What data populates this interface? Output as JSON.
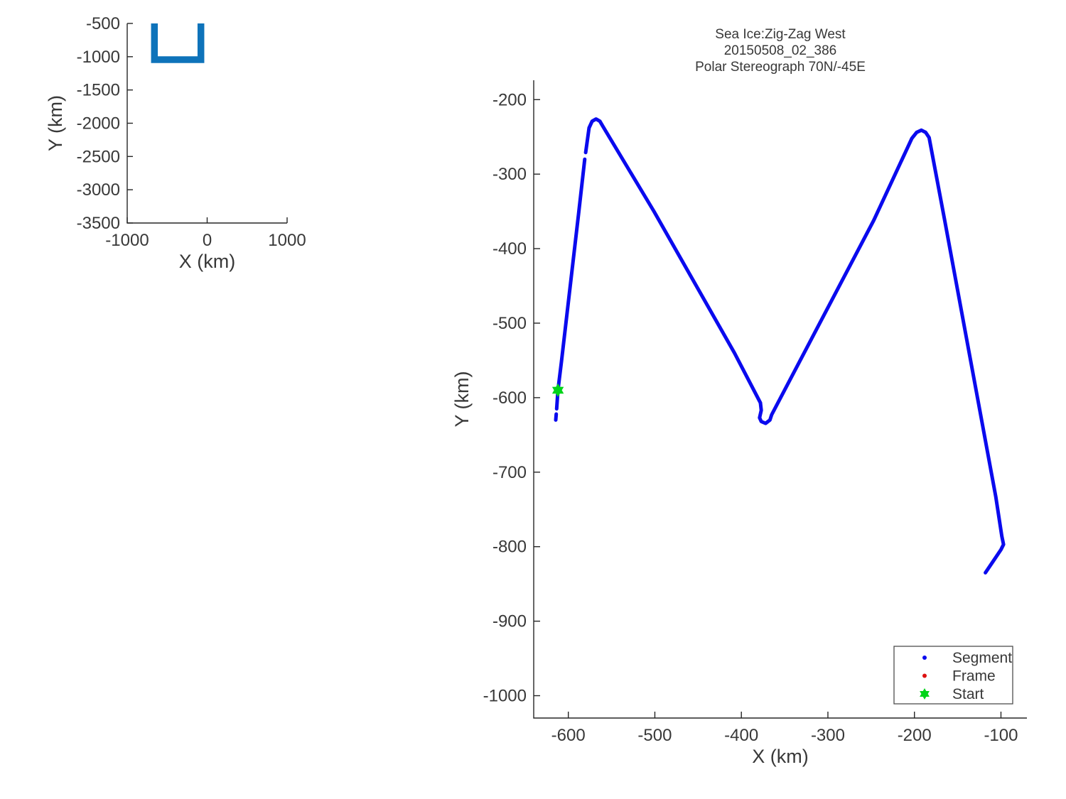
{
  "style": {
    "background": "#ffffff",
    "axis_color": "#262626",
    "text_color": "#383838",
    "track_blue": "#0a0aee",
    "overview_blue": "#0e73ba",
    "start_green": "#00d419",
    "frame_red": "#dd1111",
    "legend_border": "#4d4d4d"
  },
  "chart_data": [
    {
      "id": "overview",
      "type": "line",
      "xlabel": "X (km)",
      "ylabel": "Y (km)",
      "xlim": [
        -1000,
        1000
      ],
      "ylim": [
        -3500,
        -500
      ],
      "xticks": [
        -1000,
        0,
        1000
      ],
      "yticks": [
        -500,
        -1000,
        -1500,
        -2000,
        -2500,
        -3000,
        -3500
      ],
      "series": [
        {
          "name": "route-overview-track",
          "color_key": "overview_blue",
          "points": [
            [
              -660,
              -500
            ],
            [
              -660,
              -1045
            ],
            [
              -78,
              -1045
            ],
            [
              -78,
              -500
            ]
          ]
        }
      ]
    },
    {
      "id": "main",
      "type": "line",
      "title_lines": [
        "Sea Ice:Zig-Zag West",
        "20150508_02_386",
        "Polar Stereograph 70N/-45E"
      ],
      "xlabel": "X (km)",
      "ylabel": "Y (km)",
      "xlim": [
        -640,
        -70
      ],
      "ylim": [
        -1030,
        -174
      ],
      "xticks": [
        -600,
        -500,
        -400,
        -300,
        -200,
        -100
      ],
      "yticks": [
        -200,
        -300,
        -400,
        -500,
        -600,
        -700,
        -800,
        -900,
        -1000
      ],
      "series": [
        {
          "name": "flight-track-segment-1",
          "color_key": "track_blue",
          "points": [
            [
              -614.5,
              -630
            ],
            [
              -614,
              -622
            ]
          ]
        },
        {
          "name": "flight-track-segment-2",
          "color_key": "track_blue",
          "points": [
            [
              -613.5,
              -615
            ],
            [
              -612,
              -590
            ],
            [
              -608,
              -552
            ],
            [
              -588,
              -352
            ],
            [
              -581,
              -280
            ]
          ]
        },
        {
          "name": "flight-track-segment-3",
          "color_key": "track_blue",
          "points": [
            [
              -580,
              -271
            ],
            [
              -576,
              -238
            ],
            [
              -572.5,
              -229
            ],
            [
              -568,
              -226
            ],
            [
              -563.5,
              -229
            ],
            [
              -560,
              -236
            ],
            [
              -501,
              -350
            ],
            [
              -408,
              -540
            ],
            [
              -378,
              -607
            ],
            [
              -377,
              -617
            ],
            [
              -379,
              -627
            ],
            [
              -377,
              -632
            ],
            [
              -372,
              -634.5
            ],
            [
              -367,
              -630
            ],
            [
              -365,
              -623
            ],
            [
              -247,
              -362
            ],
            [
              -203,
              -252
            ],
            [
              -197.5,
              -244
            ],
            [
              -192,
              -241
            ],
            [
              -187,
              -244
            ],
            [
              -183,
              -251
            ],
            [
              -165,
              -362
            ],
            [
              -106,
              -733
            ],
            [
              -99,
              -786
            ],
            [
              -97,
              -797
            ],
            [
              -100,
              -804
            ],
            [
              -118,
              -835
            ]
          ]
        }
      ],
      "start_point": [
        -612,
        -590
      ],
      "legend": {
        "position": "bottom-right",
        "items": [
          {
            "label": "Segment",
            "marker": "dot",
            "color_key": "track_blue"
          },
          {
            "label": "Frame",
            "marker": "dot",
            "color_key": "frame_red"
          },
          {
            "label": "Start",
            "marker": "hexagram",
            "color_key": "start_green"
          }
        ]
      }
    }
  ]
}
